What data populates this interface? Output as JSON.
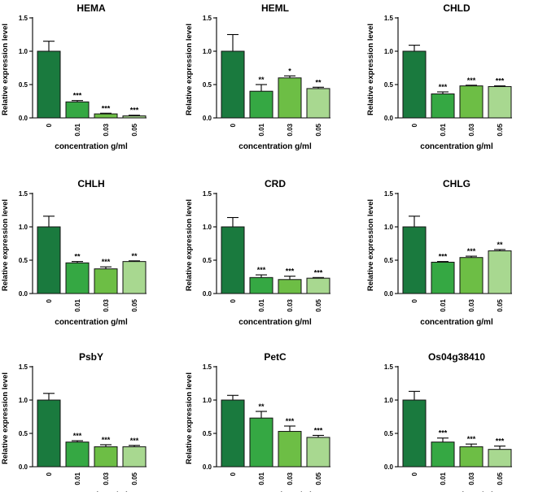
{
  "chart_data": [
    {
      "type": "bar",
      "title": "HEMA",
      "ylabel": "Relative expression level",
      "xlabel": "concentration g/ml",
      "categories": [
        "0",
        "0.01",
        "0.03",
        "0.05"
      ],
      "values": [
        1.0,
        0.24,
        0.06,
        0.03
      ],
      "errors": [
        0.15,
        0.02,
        0.01,
        0.01
      ],
      "significance": [
        "",
        "***",
        "***",
        "***"
      ],
      "ylim": [
        0,
        1.5
      ],
      "yticks": [
        "0.0",
        "0.5",
        "1.0",
        "1.5"
      ],
      "colors": [
        "#1a7a3e",
        "#35a843",
        "#6dbe45",
        "#a8d890"
      ]
    },
    {
      "type": "bar",
      "title": "HEML",
      "ylabel": "Relative expression level",
      "xlabel": "concentration g/ml",
      "categories": [
        "0",
        "0.01",
        "0.03",
        "0.05"
      ],
      "values": [
        1.0,
        0.4,
        0.6,
        0.44
      ],
      "errors": [
        0.25,
        0.1,
        0.03,
        0.02
      ],
      "significance": [
        "",
        "**",
        "*",
        "**"
      ],
      "ylim": [
        0,
        1.5
      ],
      "yticks": [
        "0.0",
        "0.5",
        "1.0",
        "1.5"
      ],
      "colors": [
        "#1a7a3e",
        "#35a843",
        "#6dbe45",
        "#a8d890"
      ]
    },
    {
      "type": "bar",
      "title": "CHLD",
      "ylabel": "Relative expression level",
      "xlabel": "concentration g/ml",
      "categories": [
        "0",
        "0.01",
        "0.03",
        "0.05"
      ],
      "values": [
        1.0,
        0.36,
        0.48,
        0.47
      ],
      "errors": [
        0.09,
        0.03,
        0.01,
        0.01
      ],
      "significance": [
        "",
        "***",
        "***",
        "***"
      ],
      "ylim": [
        0,
        1.5
      ],
      "yticks": [
        "0.0",
        "0.5",
        "1.0",
        "1.5"
      ],
      "colors": [
        "#1a7a3e",
        "#35a843",
        "#6dbe45",
        "#a8d890"
      ]
    },
    {
      "type": "bar",
      "title": "CHLH",
      "ylabel": "Relative expression level",
      "xlabel": "concentration g/ml",
      "categories": [
        "0",
        "0.01",
        "0.03",
        "0.05"
      ],
      "values": [
        1.0,
        0.46,
        0.37,
        0.48
      ],
      "errors": [
        0.16,
        0.02,
        0.03,
        0.01
      ],
      "significance": [
        "",
        "**",
        "***",
        "**"
      ],
      "ylim": [
        0,
        1.5
      ],
      "yticks": [
        "0.0",
        "0.5",
        "1.0",
        "1.5"
      ],
      "colors": [
        "#1a7a3e",
        "#35a843",
        "#6dbe45",
        "#a8d890"
      ]
    },
    {
      "type": "bar",
      "title": "CRD",
      "ylabel": "Relative expression level",
      "xlabel": "concentration g/ml",
      "categories": [
        "0",
        "0.01",
        "0.03",
        "0.05"
      ],
      "values": [
        1.0,
        0.24,
        0.21,
        0.23
      ],
      "errors": [
        0.14,
        0.04,
        0.05,
        0.01
      ],
      "significance": [
        "",
        "***",
        "***",
        "***"
      ],
      "ylim": [
        0,
        1.5
      ],
      "yticks": [
        "0.0",
        "0.5",
        "1.0",
        "1.5"
      ],
      "colors": [
        "#1a7a3e",
        "#35a843",
        "#6dbe45",
        "#a8d890"
      ]
    },
    {
      "type": "bar",
      "title": "CHLG",
      "ylabel": "Relative expression level",
      "xlabel": "concentration g/ml",
      "categories": [
        "0",
        "0.01",
        "0.03",
        "0.05"
      ],
      "values": [
        1.0,
        0.47,
        0.54,
        0.64
      ],
      "errors": [
        0.16,
        0.01,
        0.02,
        0.02
      ],
      "significance": [
        "",
        "***",
        "***",
        "**"
      ],
      "ylim": [
        0,
        1.5
      ],
      "yticks": [
        "0.0",
        "0.5",
        "1.0",
        "1.5"
      ],
      "colors": [
        "#1a7a3e",
        "#35a843",
        "#6dbe45",
        "#a8d890"
      ]
    },
    {
      "type": "bar",
      "title": "PsbY",
      "ylabel": "Relative expression level",
      "xlabel": "concentration g/ml",
      "categories": [
        "0",
        "0.01",
        "0.03",
        "0.05"
      ],
      "values": [
        1.0,
        0.37,
        0.3,
        0.3
      ],
      "errors": [
        0.1,
        0.02,
        0.03,
        0.02
      ],
      "significance": [
        "",
        "***",
        "***",
        "***"
      ],
      "ylim": [
        0,
        1.5
      ],
      "yticks": [
        "0.0",
        "0.5",
        "1.0",
        "1.5"
      ],
      "colors": [
        "#1a7a3e",
        "#35a843",
        "#6dbe45",
        "#a8d890"
      ]
    },
    {
      "type": "bar",
      "title": "PetC",
      "ylabel": "Relative expression level",
      "xlabel": "concentration g/ml",
      "categories": [
        "0",
        "0.01",
        "0.03",
        "0.05"
      ],
      "values": [
        1.0,
        0.73,
        0.53,
        0.44
      ],
      "errors": [
        0.07,
        0.1,
        0.08,
        0.03
      ],
      "significance": [
        "",
        "**",
        "***",
        "***"
      ],
      "ylim": [
        0,
        1.5
      ],
      "yticks": [
        "0.0",
        "0.5",
        "1.0",
        "1.5"
      ],
      "colors": [
        "#1a7a3e",
        "#35a843",
        "#6dbe45",
        "#a8d890"
      ]
    },
    {
      "type": "bar",
      "title": "Os04g38410",
      "ylabel": "",
      "xlabel": "concentration g/ml",
      "categories": [
        "0",
        "0.01",
        "0.03",
        "0.05"
      ],
      "values": [
        1.0,
        0.37,
        0.3,
        0.26
      ],
      "errors": [
        0.13,
        0.06,
        0.04,
        0.05
      ],
      "significance": [
        "",
        "***",
        "***",
        "***"
      ],
      "ylim": [
        0,
        1.5
      ],
      "yticks": [
        "0.0",
        "0.5",
        "1.0",
        "1.5"
      ],
      "colors": [
        "#1a7a3e",
        "#35a843",
        "#6dbe45",
        "#a8d890"
      ]
    }
  ]
}
